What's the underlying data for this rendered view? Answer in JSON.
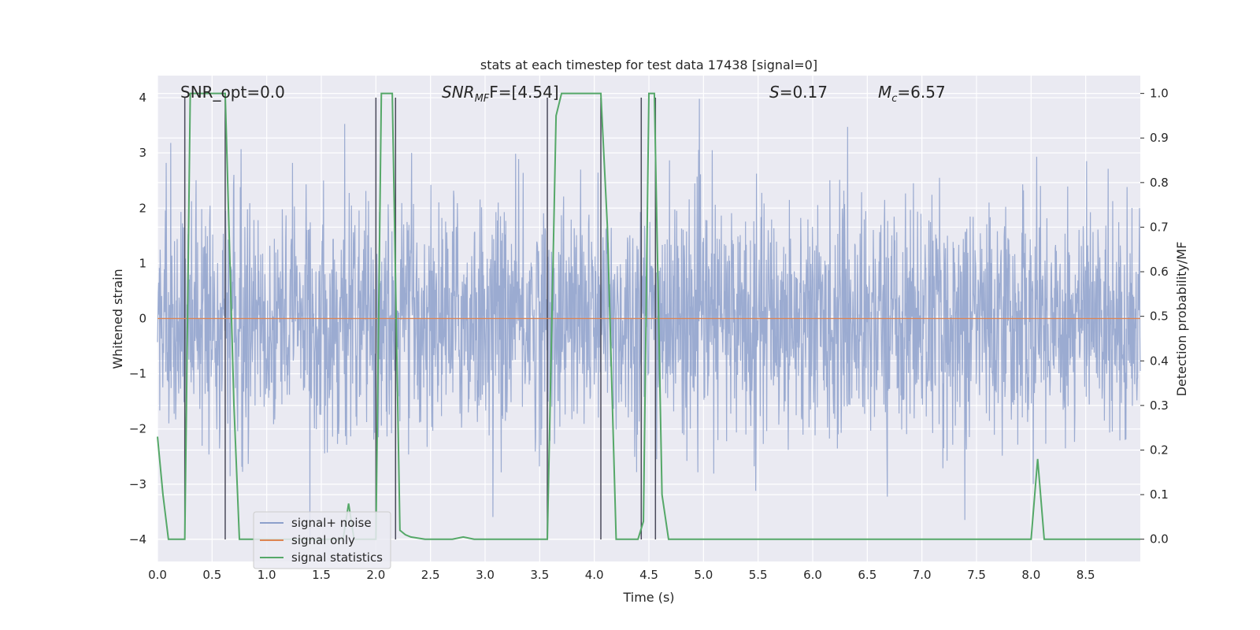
{
  "chart_data": {
    "type": "line",
    "title": "stats at each timestep for test data 17438 [signal=0]",
    "xlabel": "Time (s)",
    "ylabel": "Whitened strain",
    "ylabel_right": "Detection probability/MF",
    "xlim": [
      0,
      9.0
    ],
    "ylim": [
      -4.4,
      4.4
    ],
    "ylim_right": [
      -0.05,
      1.04
    ],
    "x_ticks": [
      0.0,
      0.5,
      1.0,
      1.5,
      2.0,
      2.5,
      3.0,
      3.5,
      4.0,
      4.5,
      5.0,
      5.5,
      6.0,
      6.5,
      7.0,
      7.5,
      8.0,
      8.5
    ],
    "x_tick_labels": [
      "0.0",
      "0.5",
      "1.0",
      "1.5",
      "2.0",
      "2.5",
      "3.0",
      "3.5",
      "4.0",
      "4.5",
      "5.0",
      "5.5",
      "6.0",
      "6.5",
      "7.0",
      "7.5",
      "8.0",
      "8.5"
    ],
    "y_ticks": [
      -4,
      -3,
      -2,
      -1,
      0,
      1,
      2,
      3,
      4
    ],
    "y_tick_labels": [
      "−4",
      "−3",
      "−2",
      "−1",
      "0",
      "1",
      "2",
      "3",
      "4"
    ],
    "y_ticks_right": [
      0.0,
      0.1,
      0.2,
      0.3,
      0.4,
      0.5,
      0.6,
      0.7,
      0.8,
      0.9,
      1.0
    ],
    "y_tick_labels_right": [
      "0.0",
      "0.1",
      "0.2",
      "0.3",
      "0.4",
      "0.5",
      "0.6",
      "0.7",
      "0.8",
      "0.9",
      "1.0"
    ],
    "grid": true,
    "legend": {
      "placement": "lower-left",
      "entries": [
        {
          "name": "signal+ noise",
          "color": "#8da0cb"
        },
        {
          "name": "signal only",
          "color": "#dd8452"
        },
        {
          "name": "signal statistics",
          "color": "#55a868"
        }
      ]
    },
    "annotations": {
      "snr_opt": "SNR_opt=0.0",
      "snr_mf_main": "SNR",
      "snr_mf_sub": "MF",
      "snr_mf_value": "F=[4.54]",
      "s_main": "S",
      "s_value": "=0.17",
      "mc_main": "M",
      "mc_sub": "c",
      "mc_value": "=6.57"
    },
    "series": [
      {
        "name": "signal+ noise",
        "axis": "left",
        "color": "#8da0cb",
        "description_values": "dense whitened noise trace, mostly within ±2.3, peaks to about ±4"
      },
      {
        "name": "signal only",
        "axis": "left",
        "color": "#dd8452",
        "x": [
          0.0,
          9.0
        ],
        "y": [
          0.0,
          0.0
        ]
      },
      {
        "name": "signal statistics",
        "axis": "right",
        "color": "#55a868",
        "x": [
          0.0,
          0.05,
          0.1,
          0.25,
          0.3,
          0.33,
          0.58,
          0.62,
          0.7,
          0.75,
          1.0,
          1.7,
          1.75,
          1.8,
          2.0,
          2.05,
          2.1,
          2.15,
          2.22,
          2.27,
          2.32,
          2.45,
          2.7,
          2.8,
          2.9,
          3.2,
          3.57,
          3.65,
          3.7,
          3.75,
          4.06,
          4.12,
          4.2,
          4.4,
          4.45,
          4.5,
          4.55,
          4.62,
          4.68,
          5.0,
          6.0,
          7.0,
          8.0,
          8.06,
          8.12,
          8.5,
          9.0
        ],
        "y": [
          0.23,
          0.1,
          0.0,
          0.0,
          1.0,
          1.0,
          1.0,
          1.0,
          0.3,
          0.0,
          0.0,
          0.0,
          0.08,
          0.0,
          0.0,
          1.0,
          1.0,
          1.0,
          0.02,
          0.01,
          0.005,
          0.0,
          0.0,
          0.005,
          0.0,
          0.0,
          0.0,
          0.95,
          1.0,
          1.0,
          1.0,
          0.7,
          0.0,
          0.0,
          0.04,
          1.0,
          1.0,
          0.1,
          0.0,
          0.0,
          0.0,
          0.0,
          0.0,
          0.18,
          0.0,
          0.0,
          0.0
        ]
      }
    ],
    "vertical_markers_x": [
      0.25,
      0.62,
      2.0,
      2.18,
      3.57,
      4.06,
      4.43,
      4.56
    ]
  }
}
